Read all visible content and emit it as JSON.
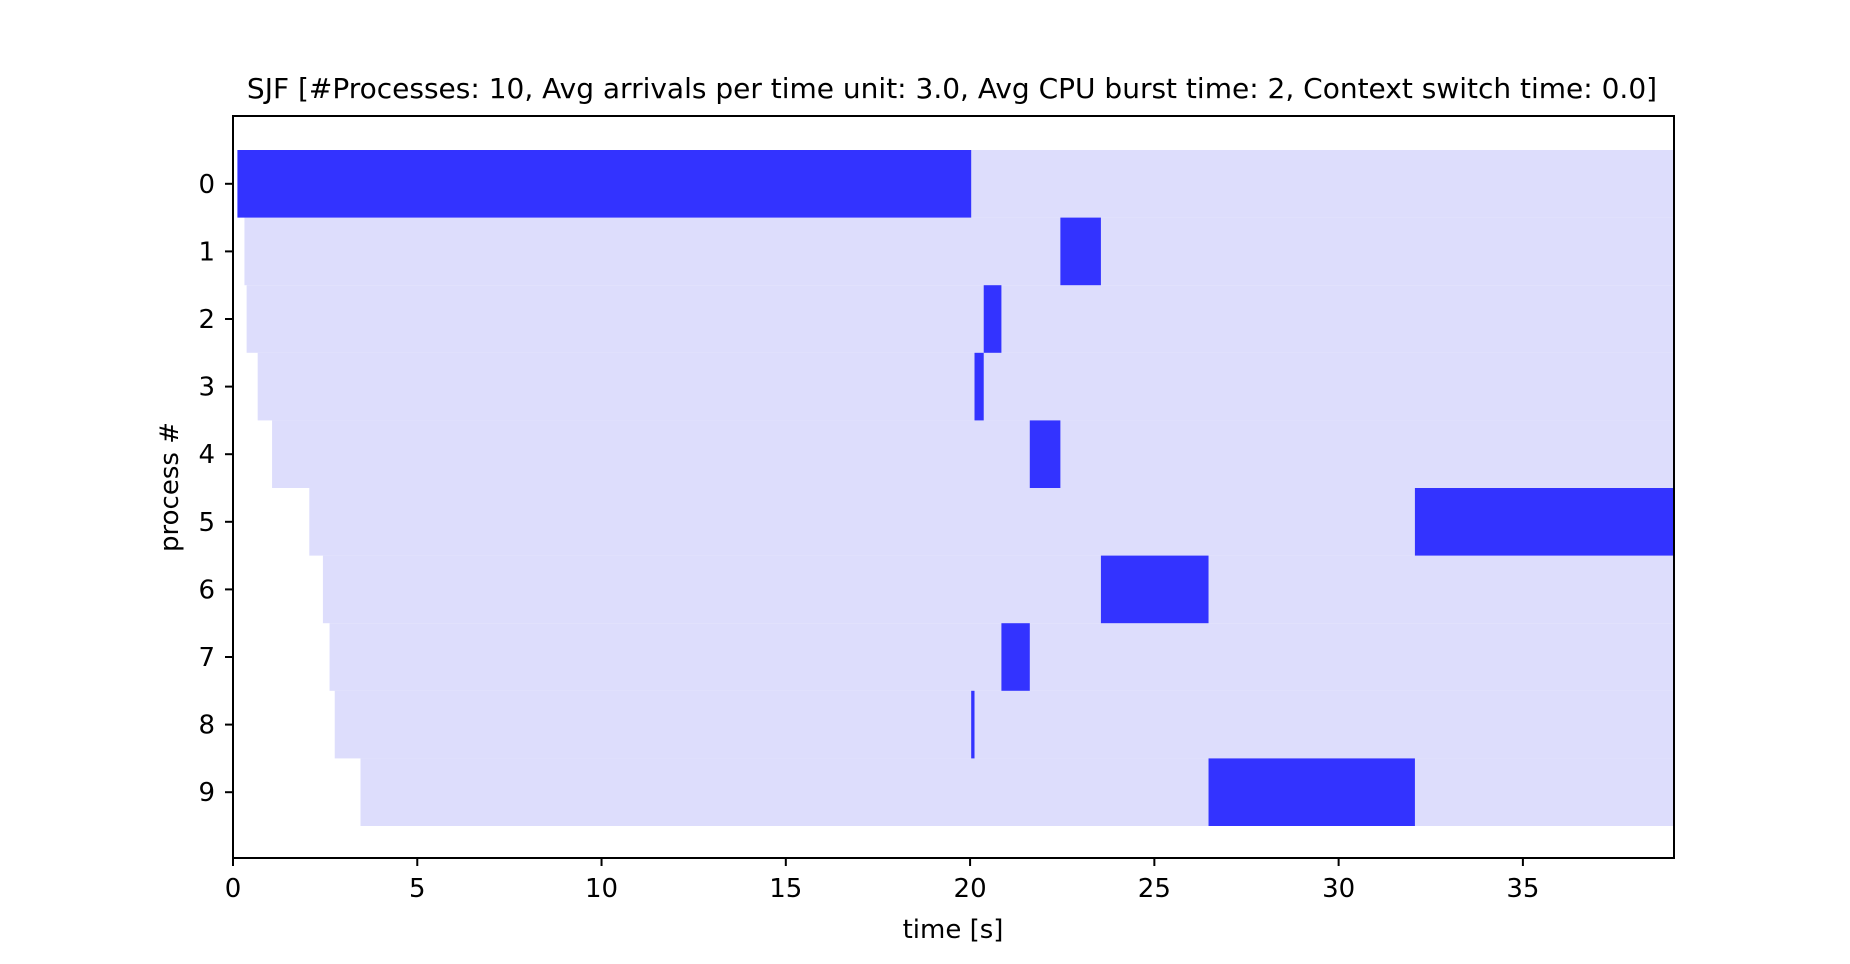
{
  "chart_data": {
    "type": "gantt",
    "title": "SJF [#Processes: 10, Avg arrivals per time unit: 3.0, Avg CPU burst time: 2, Context switch time: 0.0]",
    "xlabel": "time [s]",
    "ylabel": "process #",
    "xlim": [
      0,
      39.1
    ],
    "x_ticks": [
      0,
      5,
      10,
      15,
      20,
      25,
      30,
      35
    ],
    "x_tick_labels": [
      "0",
      "5",
      "10",
      "15",
      "20",
      "25",
      "30",
      "35"
    ],
    "y_tick_labels": [
      "0",
      "1",
      "2",
      "3",
      "4",
      "5",
      "6",
      "7",
      "8",
      "9"
    ],
    "grid": false,
    "colors": {
      "running": "#3333ff",
      "waiting": "#ddddfc"
    },
    "processes": [
      {
        "id": "0",
        "arrival": 0.12,
        "start": 0.12,
        "end": 20.03
      },
      {
        "id": "1",
        "arrival": 0.31,
        "start": 22.45,
        "end": 23.55
      },
      {
        "id": "2",
        "arrival": 0.37,
        "start": 20.37,
        "end": 20.85
      },
      {
        "id": "3",
        "arrival": 0.67,
        "start": 20.12,
        "end": 20.37
      },
      {
        "id": "4",
        "arrival": 1.06,
        "start": 21.62,
        "end": 22.45
      },
      {
        "id": "5",
        "arrival": 2.07,
        "start": 32.07,
        "end": 39.1
      },
      {
        "id": "6",
        "arrival": 2.44,
        "start": 23.55,
        "end": 26.47
      },
      {
        "id": "7",
        "arrival": 2.62,
        "start": 20.85,
        "end": 21.62
      },
      {
        "id": "8",
        "arrival": 2.76,
        "start": 20.03,
        "end": 20.12
      },
      {
        "id": "9",
        "arrival": 3.46,
        "start": 26.47,
        "end": 32.07
      }
    ]
  }
}
